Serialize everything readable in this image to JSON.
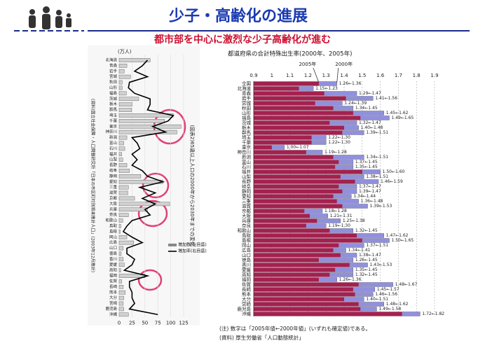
{
  "header": {
    "title": "少子・高齢化の進展",
    "subtitle": "都市部を中心に激烈な少子高齢化が進む"
  },
  "chart_data": [
    {
      "type": "hbar-line",
      "title": "(図表2)65歳以上人口の2000年から2030年までの変化",
      "source": "(資料)国立社会保障・人口問題研究所「日本の市区町村別将来推計人口」(2003年12月推計)",
      "unit": "(万人)",
      "categories": [
        "北海道",
        "青森",
        "岩手",
        "宮城",
        "秋田",
        "山形",
        "福島",
        "茨城",
        "栃木",
        "群馬",
        "埼玉",
        "千葉",
        "東京",
        "神奈川",
        "新潟",
        "富山",
        "石川",
        "福井",
        "山梨",
        "長野",
        "岐阜",
        "静岡",
        "愛知",
        "三重",
        "滋賀",
        "京都",
        "大阪",
        "兵庫",
        "奈良",
        "和歌山",
        "鳥取",
        "島根",
        "岡山",
        "広島",
        "山口",
        "徳島",
        "香川",
        "愛媛",
        "高知",
        "福岡",
        "佐賀",
        "長崎",
        "熊本",
        "大分",
        "宮崎",
        "鹿児島",
        "沖縄"
      ],
      "series": [
        {
          "name": "増加数(左目盛)",
          "color": "#d0d0d0",
          "values": [
            60,
            15,
            10,
            22,
            6,
            6,
            14,
            38,
            25,
            24,
            105,
            88,
            120,
            112,
            15,
            9,
            11,
            5,
            7,
            15,
            20,
            42,
            85,
            18,
            17,
            30,
            98,
            55,
            18,
            7,
            3,
            2,
            15,
            28,
            8,
            4,
            8,
            10,
            3,
            50,
            5,
            8,
            12,
            9,
            8,
            9,
            18
          ]
        },
        {
          "name": "増加率(右目盛)",
          "color": "#000000",
          "values": [
            55,
            45,
            30,
            55,
            20,
            18,
            30,
            60,
            60,
            55,
            105,
            95,
            65,
            90,
            25,
            35,
            40,
            25,
            35,
            25,
            45,
            55,
            85,
            40,
            70,
            45,
            70,
            50,
            60,
            25,
            15,
            8,
            25,
            45,
            15,
            15,
            30,
            25,
            10,
            55,
            20,
            20,
            25,
            25,
            30,
            20,
            75
          ]
        }
      ],
      "xlim": [
        0,
        125
      ],
      "xticks": [
        0,
        25,
        50,
        75,
        100,
        125
      ]
    },
    {
      "type": "hbar-pair",
      "title": "都道府県の合計特殊出生率(2000年、2005年)",
      "categories": [
        "全国",
        "北海道",
        "青森",
        "岩手",
        "宮城",
        "秋田",
        "山形",
        "福島",
        "茨城",
        "栃木",
        "群馬",
        "埼玉",
        "千葉",
        "東京",
        "神奈川",
        "新潟",
        "富山",
        "石川",
        "福井",
        "山梨",
        "長野",
        "岐阜",
        "静岡",
        "愛知",
        "三重",
        "滋賀",
        "京都",
        "大阪",
        "兵庫",
        "奈良",
        "和歌山",
        "鳥取",
        "島根",
        "岡山",
        "広島",
        "山口",
        "徳島",
        "香川",
        "愛媛",
        "高知",
        "福岡",
        "佐賀",
        "長崎",
        "熊本",
        "大分",
        "宮崎",
        "鹿児島",
        "沖縄"
      ],
      "series": [
        {
          "name": "2005年",
          "color": "#a3214f",
          "values": [
            1.26,
            1.15,
            1.29,
            1.41,
            1.24,
            1.34,
            1.45,
            1.49,
            1.32,
            1.4,
            1.39,
            1.22,
            1.22,
            1.0,
            1.19,
            1.34,
            1.37,
            1.35,
            1.5,
            1.38,
            1.46,
            1.37,
            1.39,
            1.34,
            1.36,
            1.39,
            1.18,
            1.21,
            1.25,
            1.19,
            1.32,
            1.47,
            1.5,
            1.37,
            1.34,
            1.38,
            1.26,
            1.43,
            1.35,
            1.32,
            1.26,
            1.48,
            1.45,
            1.46,
            1.4,
            1.48,
            1.49,
            1.72
          ],
          "value_labels": [
            "1.26←1.36",
            "1.15←1.23",
            "1.29←1.47",
            "1.41←1.56",
            "1.24←1.39",
            "1.34←1.45",
            "1.45←1.62",
            "1.49←1.65",
            "1.32←1.47",
            "1.40←1.48",
            "1.39←1.51",
            "1.22←1.30",
            "1.22←1.30",
            "1.00←1.07",
            "1.19←1.28",
            "1.34←1.51",
            "1.37←1.45",
            "1.35←1.45",
            "1.50←1.60",
            "1.38←1.51",
            "1.46←1.59",
            "1.37←1.47",
            "1.39←1.47",
            "1.34←1.44",
            "1.36←1.48",
            "1.39←1.53",
            "1.18←1.28",
            "1.21←1.31",
            "1.25←1.38",
            "1.19←1.30",
            "1.32←1.45",
            "1.47←1.62",
            "1.50←1.65",
            "1.37←1.51",
            "1.34←1.41",
            "1.38←1.47",
            "1.26←1.45",
            "1.43←1.53",
            "1.35←1.45",
            "1.32←1.45",
            "1.26←1.36",
            "1.48←1.67",
            "1.45←1.57",
            "1.46←1.56",
            "1.40←1.51",
            "1.48←1.62",
            "1.49←1.58",
            "1.72←1.82"
          ]
        },
        {
          "name": "2000年",
          "color": "#9090dd",
          "values": [
            1.36,
            1.23,
            1.47,
            1.56,
            1.39,
            1.45,
            1.62,
            1.65,
            1.47,
            1.48,
            1.51,
            1.3,
            1.3,
            1.07,
            1.28,
            1.51,
            1.45,
            1.45,
            1.6,
            1.51,
            1.59,
            1.47,
            1.47,
            1.44,
            1.48,
            1.53,
            1.28,
            1.31,
            1.38,
            1.3,
            1.45,
            1.62,
            1.65,
            1.51,
            1.41,
            1.47,
            1.45,
            1.53,
            1.45,
            1.45,
            1.36,
            1.67,
            1.57,
            1.56,
            1.51,
            1.62,
            1.58,
            1.82
          ]
        }
      ],
      "xlim": [
        0.9,
        1.9
      ],
      "xticks": [
        0.9,
        {
          "value": 1,
          "label": "1"
        },
        1.1,
        1.2,
        1.3,
        1.4,
        1.5,
        1.6,
        1.7,
        1.8,
        1.9
      ],
      "notes": [
        "(注) 数字は「2005年値←2000年値」(いずれも確定値)である。",
        "(資料) 厚生労働省「人口動態統計」"
      ]
    }
  ]
}
